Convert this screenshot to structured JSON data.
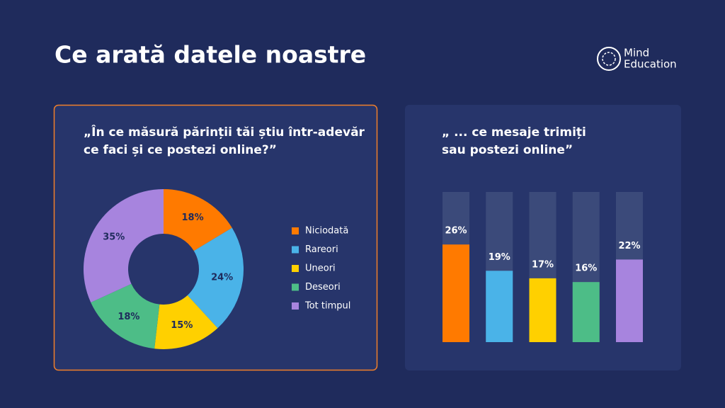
{
  "header": {
    "title": "Ce arată datele noastre",
    "logo": [
      "Mind",
      "Education"
    ]
  },
  "chart_data": [
    {
      "type": "pie",
      "title": [
        "„În ce măsură părinții tăi știu într-adevăr",
        "ce faci și ce postezi online?”"
      ],
      "categories": [
        "Niciodată",
        "Rareori",
        "Uneori",
        "Deseori",
        "Tot timpul"
      ],
      "values": [
        18,
        24,
        15,
        18,
        35
      ],
      "value_labels": [
        "18%",
        "24%",
        "15%",
        "18%",
        "35%"
      ],
      "colors": [
        "#ff7a00",
        "#4ab3e8",
        "#ffd000",
        "#4dbd87",
        "#a784de"
      ]
    },
    {
      "type": "bar",
      "title": [
        "„ ... ce mesaje trimiți",
        "sau postezi online”"
      ],
      "values": [
        26,
        19,
        17,
        16,
        22
      ],
      "value_labels": [
        "26%",
        "19%",
        "17%",
        "16%",
        "22%"
      ],
      "colors": [
        "#ff7a00",
        "#4ab3e8",
        "#ffd000",
        "#4dbd87",
        "#a784de"
      ],
      "ylim": [
        0,
        40
      ]
    }
  ]
}
